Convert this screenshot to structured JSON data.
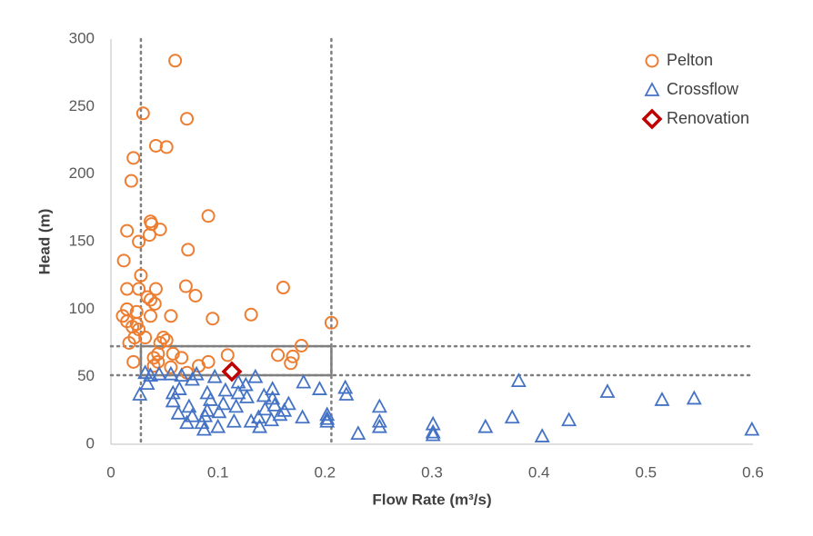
{
  "chart_data": {
    "type": "scatter",
    "x_label": "Flow Rate (m³/s)",
    "y_label": "Head (m)",
    "xlim": [
      0,
      0.6
    ],
    "ylim": [
      0,
      300
    ],
    "xticks": [
      0,
      0.1,
      0.2,
      0.3,
      0.4,
      0.5,
      0.6
    ],
    "yticks": [
      0,
      50,
      100,
      150,
      200,
      250,
      300
    ],
    "grid": false,
    "legend": "top-right",
    "reference_lines": {
      "x": [
        0.028,
        0.206
      ],
      "y": [
        72.6,
        51.1
      ]
    },
    "box": {
      "x": [
        0.028,
        0.206
      ],
      "y": [
        51.1,
        72.6
      ]
    },
    "series": [
      {
        "name": "Pelton",
        "color": "#ED7D31",
        "marker": "circle",
        "x": [
          0.06,
          0.03,
          0.071,
          0.042,
          0.052,
          0.021,
          0.019,
          0.091,
          0.037,
          0.038,
          0.046,
          0.015,
          0.036,
          0.026,
          0.072,
          0.012,
          0.028,
          0.015,
          0.026,
          0.07,
          0.161,
          0.042,
          0.034,
          0.079,
          0.037,
          0.041,
          0.015,
          0.024,
          0.037,
          0.011,
          0.056,
          0.131,
          0.095,
          0.015,
          0.024,
          0.206,
          0.02,
          0.026,
          0.049,
          0.052,
          0.022,
          0.017,
          0.032,
          0.046,
          0.178,
          0.17,
          0.156,
          0.109,
          0.044,
          0.058,
          0.066,
          0.04,
          0.044,
          0.04,
          0.021,
          0.091,
          0.168,
          0.082,
          0.056,
          0.071
        ],
        "values": [
          284,
          245,
          241,
          221,
          220,
          212,
          195,
          169,
          165,
          163,
          159,
          158,
          155,
          150,
          144,
          136,
          125,
          115,
          115,
          117,
          116,
          115,
          109,
          110,
          107,
          104,
          100,
          98,
          95,
          95,
          95,
          96,
          93,
          91,
          89,
          90,
          87,
          85,
          79,
          77,
          79,
          75,
          79,
          75,
          73,
          65,
          66,
          66,
          67,
          67,
          64,
          64,
          61,
          58,
          61,
          61,
          60,
          58,
          57,
          53
        ]
      },
      {
        "name": "Crossflow",
        "color": "#4472C4",
        "marker": "triangle",
        "x": [
          0.381,
          0.464,
          0.515,
          0.545,
          0.599,
          0.428,
          0.403,
          0.375,
          0.35,
          0.301,
          0.301,
          0.301,
          0.251,
          0.251,
          0.251,
          0.231,
          0.219,
          0.22,
          0.202,
          0.202,
          0.202,
          0.195,
          0.18,
          0.179,
          0.166,
          0.162,
          0.158,
          0.151,
          0.151,
          0.153,
          0.15,
          0.144,
          0.143,
          0.135,
          0.138,
          0.139,
          0.126,
          0.127,
          0.131,
          0.119,
          0.119,
          0.117,
          0.115,
          0.107,
          0.105,
          0.097,
          0.101,
          0.1,
          0.093,
          0.09,
          0.09,
          0.088,
          0.085,
          0.087,
          0.08,
          0.076,
          0.076,
          0.073,
          0.071,
          0.066,
          0.064,
          0.063,
          0.058,
          0.058,
          0.056,
          0.045,
          0.037,
          0.034,
          0.032,
          0.027
        ],
        "values": [
          47,
          39,
          33,
          34,
          11,
          18,
          6,
          20,
          13,
          15,
          9,
          7,
          28,
          17,
          13,
          8,
          42,
          37,
          22,
          19,
          17,
          41,
          46,
          20,
          30,
          25,
          22,
          41,
          34,
          29,
          18,
          26,
          36,
          50,
          20,
          13,
          44,
          35,
          17,
          46,
          38,
          28,
          17,
          40,
          30,
          50,
          24,
          13,
          33,
          38,
          25,
          21,
          16,
          11,
          52,
          48,
          21,
          28,
          16,
          51,
          41,
          23,
          32,
          38,
          52,
          52,
          51,
          45,
          53,
          37
        ]
      },
      {
        "name": "Renovation",
        "color": "#C00000",
        "marker": "diamond",
        "x": [
          0.113
        ],
        "values": [
          53.8
        ]
      }
    ]
  }
}
